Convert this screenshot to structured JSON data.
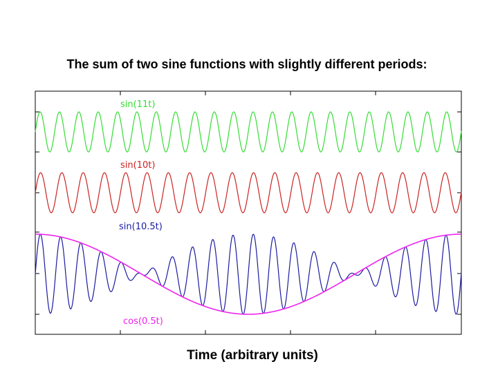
{
  "title": "The sum of two sine functions with slightly different periods:",
  "chart_data": {
    "type": "line",
    "title": "The sum of two sine functions with slightly different periods:",
    "xlabel": "Time (arbitrary units)",
    "ylabel": "",
    "grid": false,
    "x_range": [
      0,
      12.57
    ],
    "series": [
      {
        "name": "sin(11t)",
        "color": "#33dd33",
        "formula": "sin(11t)",
        "amplitude": 1
      },
      {
        "name": "sin(10t)",
        "color": "#cc2222",
        "formula": "sin(10t)",
        "amplitude": 1
      },
      {
        "name": "sin(10.5t)",
        "color": "#1a1aa0",
        "formula": "sin(10.5t)",
        "amplitude": 2
      },
      {
        "name": "cos(0.5t)",
        "color": "#ee22ee",
        "formula": "cos(0.5t)",
        "amplitude": 2
      }
    ]
  }
}
